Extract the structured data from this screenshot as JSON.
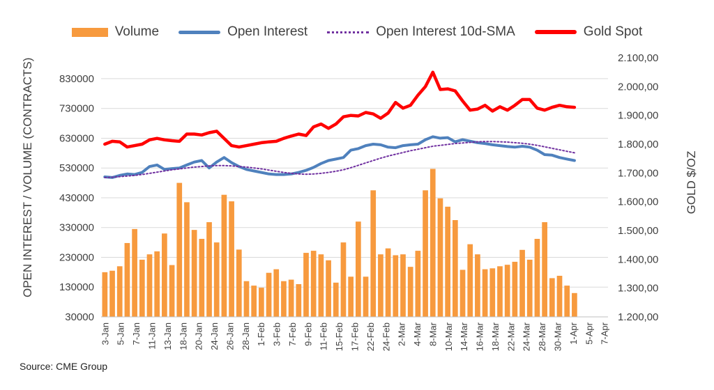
{
  "legend": {
    "volume": "Volume",
    "open_interest": "Open Interest",
    "sma": "Open Interest 10d-SMA",
    "gold": "Gold Spot"
  },
  "source": "Source: CME Group",
  "colors": {
    "volume": "#f79a3e",
    "open_interest": "#4f81bd",
    "sma": "#7030a0",
    "gold": "#ff0000",
    "axis": "#bfbfbf",
    "grid": "#d9d9d9"
  },
  "chart_data": {
    "type": "bar",
    "ylabel_left": "OPEN INTEREST / VOLUME (CONTRACTS)",
    "ylabel_right": "GOLD $/OZ",
    "ylim_left": [
      30000,
      900000
    ],
    "ylim_right": [
      1200,
      2100
    ],
    "yticks_left": [
      "30000",
      "130000",
      "230000",
      "330000",
      "430000",
      "530000",
      "630000",
      "730000",
      "830000"
    ],
    "yticks_right": [
      "1.200,00",
      "1.300,00",
      "1.400,00",
      "1.500,00",
      "1.600,00",
      "1.700,00",
      "1.800,00",
      "1.900,00",
      "2.000,00",
      "2.100,00"
    ],
    "gridlines": true,
    "legend_position": "top",
    "x_tick_labels": [
      "3-Jan",
      "5-Jan",
      "7-Jan",
      "11-Jan",
      "13-Jan",
      "18-Jan",
      "20-Jan",
      "24-Jan",
      "26-Jan",
      "28-Jan",
      "1-Feb",
      "3-Feb",
      "7-Feb",
      "9-Feb",
      "11-Feb",
      "15-Feb",
      "17-Feb",
      "22-Feb",
      "24-Feb",
      "2-Mar",
      "4-Mar",
      "8-Mar",
      "10-Mar",
      "14-Mar",
      "16-Mar",
      "18-Mar",
      "22-Mar",
      "24-Mar",
      "28-Mar",
      "30-Mar",
      "1-Apr",
      "5-Apr",
      "7-Apr"
    ],
    "series": [
      {
        "name": "Volume",
        "kind": "bar",
        "axis": "left",
        "values": [
          180000,
          185000,
          200000,
          278000,
          325000,
          222000,
          240000,
          250000,
          310000,
          204000,
          480000,
          415000,
          322000,
          292000,
          348000,
          280000,
          440000,
          418000,
          256000,
          150000,
          135000,
          128000,
          178000,
          190000,
          150000,
          155000,
          140000,
          245000,
          252000,
          240000,
          220000,
          145000,
          280000,
          165000,
          350000,
          165000,
          455000,
          240000,
          260000,
          237000,
          240000,
          198000,
          252000,
          455000,
          527000,
          428000,
          400000,
          355000,
          188000,
          274000,
          240000,
          190000,
          193000,
          200000,
          205000,
          215000,
          255000,
          222000,
          292000,
          348000,
          160000,
          168000,
          135000,
          110000
        ]
      },
      {
        "name": "Open Interest",
        "kind": "line",
        "axis": "left",
        "values": [
          500000,
          498000,
          505000,
          510000,
          508000,
          515000,
          535000,
          540000,
          525000,
          528000,
          530000,
          540000,
          550000,
          555000,
          530000,
          550000,
          565000,
          548000,
          535000,
          525000,
          520000,
          515000,
          510000,
          508000,
          508000,
          510000,
          515000,
          522000,
          532000,
          545000,
          555000,
          560000,
          565000,
          590000,
          595000,
          605000,
          610000,
          608000,
          600000,
          598000,
          605000,
          608000,
          610000,
          625000,
          635000,
          630000,
          632000,
          618000,
          625000,
          620000,
          615000,
          612000,
          608000,
          605000,
          602000,
          600000,
          603000,
          600000,
          590000,
          575000,
          573000,
          565000,
          560000,
          555000
        ]
      },
      {
        "name": "Open Interest 10d-SMA",
        "kind": "dotted-line",
        "axis": "left",
        "values": [
          498000,
          499000,
          501000,
          503000,
          505000,
          508000,
          512000,
          516000,
          520000,
          524000,
          527000,
          530000,
          533000,
          535000,
          537000,
          538000,
          538000,
          537000,
          535000,
          533000,
          530000,
          527000,
          523000,
          519000,
          515000,
          512000,
          510000,
          509000,
          510000,
          512000,
          515000,
          519000,
          524000,
          531000,
          539000,
          547000,
          555000,
          563000,
          570000,
          576000,
          582000,
          588000,
          593000,
          598000,
          603000,
          606000,
          609000,
          612000,
          614000,
          616000,
          618000,
          619000,
          619000,
          618000,
          617000,
          615000,
          613000,
          610000,
          606000,
          601000,
          596000,
          591000,
          586000,
          581000
        ]
      },
      {
        "name": "Gold Spot",
        "kind": "line",
        "axis": "right",
        "values": [
          1800,
          1810,
          1808,
          1790,
          1795,
          1800,
          1815,
          1820,
          1815,
          1812,
          1810,
          1835,
          1835,
          1832,
          1840,
          1845,
          1820,
          1795,
          1790,
          1795,
          1800,
          1805,
          1808,
          1810,
          1820,
          1828,
          1835,
          1830,
          1860,
          1870,
          1855,
          1870,
          1895,
          1900,
          1898,
          1910,
          1905,
          1890,
          1908,
          1945,
          1925,
          1935,
          1970,
          2000,
          2050,
          1990,
          1992,
          1985,
          1950,
          1918,
          1922,
          1935,
          1915,
          1930,
          1918,
          1935,
          1955,
          1955,
          1925,
          1918,
          1928,
          1935,
          1930,
          1928
        ]
      }
    ]
  }
}
